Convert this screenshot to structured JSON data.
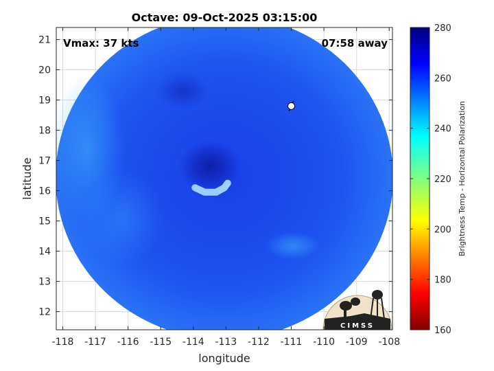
{
  "chart_data": {
    "type": "heatmap",
    "title": "Octave: 09-Oct-2025 03:15:00",
    "xlabel": "longitude",
    "ylabel": "latitude",
    "xlim": [
      -118.2,
      -107.9
    ],
    "ylim": [
      11.4,
      21.4
    ],
    "xticks": [
      -118,
      -117,
      -116,
      -115,
      -114,
      -113,
      -112,
      -111,
      -110,
      -109,
      -108
    ],
    "yticks": [
      12,
      13,
      14,
      15,
      16,
      17,
      18,
      19,
      20,
      21
    ],
    "grid": true,
    "annotations": {
      "left": "Vmax: 37 kts",
      "right": "07:58 away"
    },
    "colorbar": {
      "label": "Brightness Temp - Horizontal Polarization",
      "min": 160,
      "max": 280,
      "ticks": [
        280,
        260,
        240,
        220,
        200,
        180,
        160
      ],
      "colormap": "jet"
    },
    "swath_center": {
      "lon": -113.05,
      "lat": 16.45
    },
    "storm_center": {
      "lon": -113.5,
      "lat": 16.8
    },
    "warm_band": [
      {
        "lon": -113.95,
        "lat": 16.1
      },
      {
        "lon": -113.65,
        "lat": 15.95
      },
      {
        "lon": -113.3,
        "lat": 15.95
      },
      {
        "lon": -113.05,
        "lat": 16.1
      },
      {
        "lon": -112.95,
        "lat": 16.25
      }
    ],
    "track_marker": {
      "lon": -111.0,
      "lat": 18.8
    }
  },
  "logo": {
    "text": "CIMSS"
  }
}
